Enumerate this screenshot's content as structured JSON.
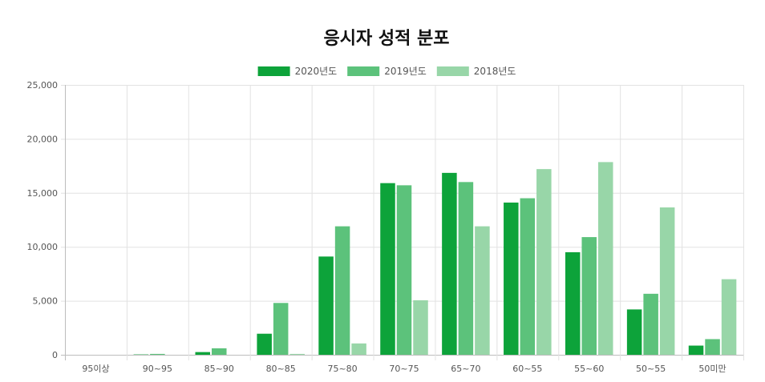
{
  "chart_data": {
    "type": "bar",
    "title": "응시자 성적 분포",
    "categories": [
      "95이상",
      "90~95",
      "85~90",
      "80~85",
      "75~80",
      "70~75",
      "65~70",
      "60~55",
      "55~60",
      "50~55",
      "50미만"
    ],
    "series": [
      {
        "name": "2020년도",
        "color": "#0da33a",
        "values": [
          0,
          30,
          250,
          1950,
          9100,
          15900,
          16850,
          14100,
          9500,
          4200,
          850
        ]
      },
      {
        "name": "2019년도",
        "color": "#5cc27b",
        "values": [
          0,
          80,
          600,
          4800,
          11900,
          15700,
          16000,
          14500,
          10900,
          5650,
          1450
        ]
      },
      {
        "name": "2018년도",
        "color": "#98d6a8",
        "values": [
          0,
          0,
          0,
          80,
          1050,
          5050,
          11900,
          17200,
          17850,
          13650,
          7000
        ]
      }
    ],
    "ylim": [
      0,
      25000
    ],
    "yticks": [
      0,
      5000,
      10000,
      15000,
      20000,
      25000
    ],
    "ytick_labels": [
      "0",
      "5,000",
      "10,000",
      "15,000",
      "20,000",
      "25,000"
    ],
    "grid": true,
    "legend_position": "top-center"
  }
}
